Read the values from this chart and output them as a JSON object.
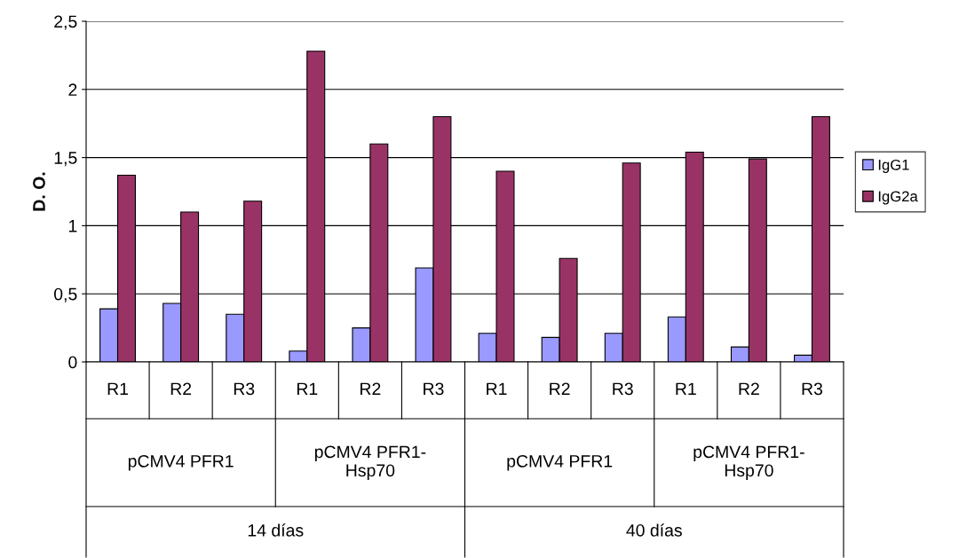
{
  "chart_data": {
    "type": "bar",
    "ylabel": "D. O.",
    "categories": [
      "R1",
      "R2",
      "R3",
      "R1",
      "R2",
      "R3",
      "R1",
      "R2",
      "R3",
      "R1",
      "R2",
      "R3"
    ],
    "series": [
      {
        "name": "IgG1",
        "color": "#9999ff",
        "values": [
          0.39,
          0.43,
          0.35,
          0.08,
          0.25,
          0.69,
          0.21,
          0.18,
          0.21,
          0.33,
          0.11,
          0.05
        ]
      },
      {
        "name": "IgG2a",
        "color": "#993366",
        "values": [
          1.37,
          1.1,
          1.18,
          2.28,
          1.6,
          1.8,
          1.4,
          0.76,
          1.46,
          1.54,
          1.49,
          1.8
        ]
      }
    ],
    "ylim": [
      0,
      2.5
    ],
    "yticks": [
      0,
      {
        "value": 0.5,
        "label": "0,5"
      },
      1,
      {
        "value": 1.5,
        "label": "1,5"
      },
      2,
      {
        "value": 2.5,
        "label": "2,5"
      }
    ],
    "grid": "y",
    "legend": "right",
    "annotations": [
      "pCMV4 PFR1",
      "pCMV4 PFR1-\nHsp70",
      "pCMV4 PFR1",
      "pCMV4 PFR1-\nHsp70",
      "14 días",
      "40 días"
    ]
  }
}
